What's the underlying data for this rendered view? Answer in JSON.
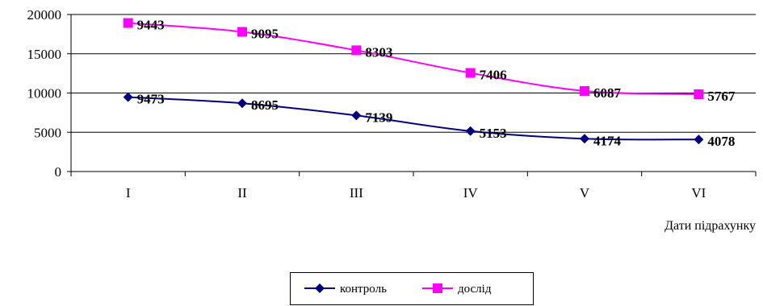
{
  "chart_data": {
    "type": "line",
    "title": "",
    "xlabel": "Дати підрахунку",
    "ylabel": "",
    "categories": [
      "I",
      "II",
      "III",
      "IV",
      "V",
      "VI"
    ],
    "ylim": [
      0,
      20000
    ],
    "yticks": [
      0,
      5000,
      10000,
      15000,
      20000
    ],
    "grid": true,
    "legend": "bottom",
    "series": [
      {
        "name": "контроль",
        "marker": "diamond",
        "color": "#000080",
        "values": [
          9473,
          8695,
          7139,
          5153,
          4174,
          4078
        ],
        "labels": [
          "9473",
          "8695",
          "7139",
          "5153",
          "4174",
          "4078"
        ]
      },
      {
        "name": "дослід",
        "marker": "square",
        "color": "#ff00ff",
        "values": [
          18916,
          17790,
          15442,
          12559,
          10261,
          9845
        ],
        "labels": [
          "9443",
          "9095",
          "8303",
          "7406",
          "6087",
          "5767"
        ]
      }
    ]
  }
}
